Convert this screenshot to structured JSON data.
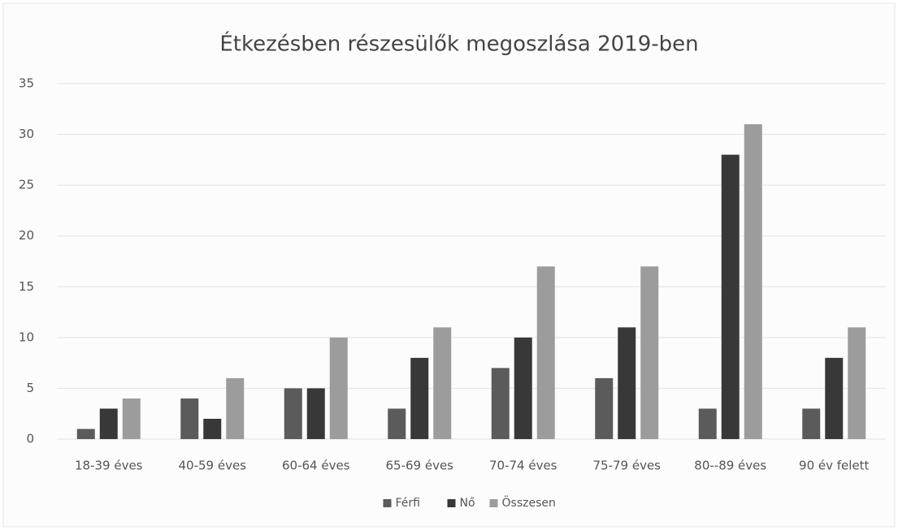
{
  "chart_data": {
    "type": "bar",
    "title": "Étkezésben részesülők megoszlása 2019-ben",
    "categories": [
      "18-39 éves",
      "40-59 éves",
      "60-64 éves",
      "65-69 éves",
      "70-74 éves",
      "75-79 éves",
      "80--89 éves",
      "90 év felett"
    ],
    "series": [
      {
        "name": "Férfi",
        "color": "#5b5b5b",
        "values": [
          1,
          4,
          5,
          3,
          7,
          6,
          3,
          3
        ]
      },
      {
        "name": "Nő",
        "color": "#383838",
        "values": [
          3,
          2,
          5,
          8,
          10,
          11,
          28,
          8
        ]
      },
      {
        "name": "Összesen",
        "color": "#9c9c9c",
        "values": [
          4,
          6,
          10,
          11,
          17,
          17,
          31,
          11
        ]
      }
    ],
    "ylim": [
      0,
      35
    ],
    "yticks": [
      0,
      5,
      10,
      15,
      20,
      25,
      30,
      35
    ],
    "grid": true,
    "legend": "bottom"
  }
}
